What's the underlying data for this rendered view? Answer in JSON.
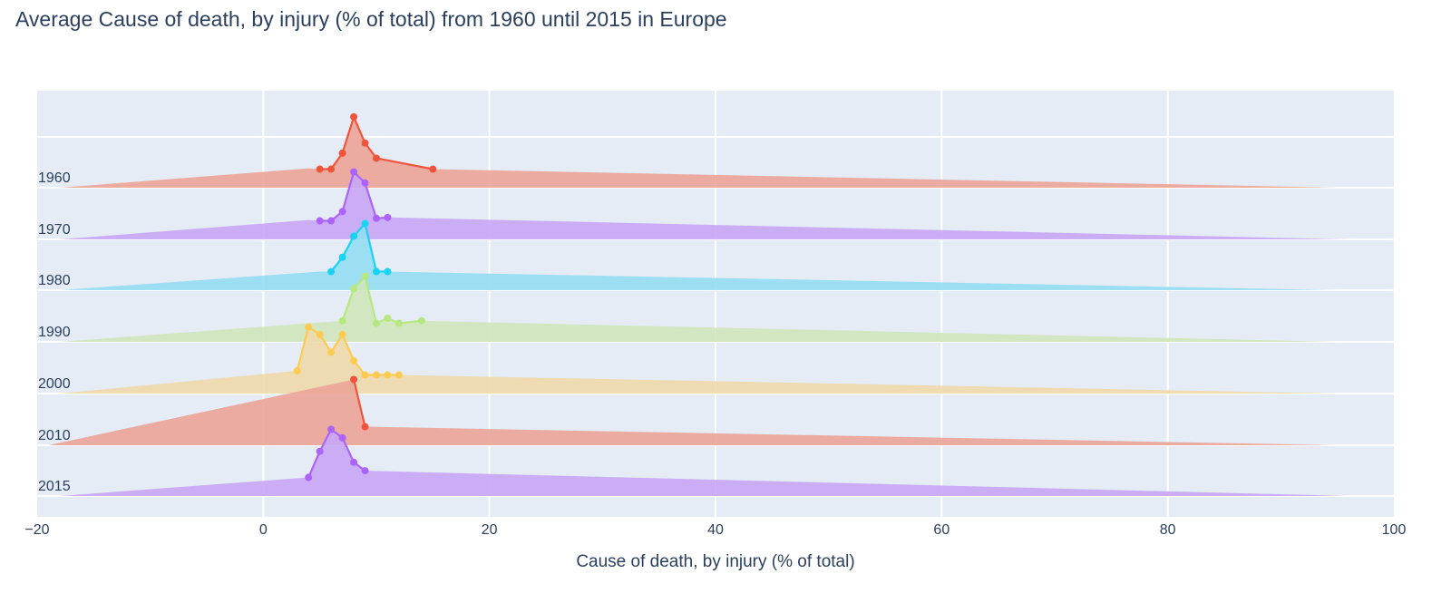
{
  "chart_data": {
    "type": "ridgeline",
    "title": "Average Cause of death, by injury (% of total) from 1960 until 2015 in Europe",
    "xlabel": "Cause of death, by injury (% of total)",
    "ylabel": "",
    "xlim": [
      -20,
      100
    ],
    "x_ticks": [
      -20,
      0,
      20,
      40,
      60,
      80,
      100
    ],
    "x_tick_labels": [
      "−20",
      "0",
      "20",
      "40",
      "60",
      "80",
      "100"
    ],
    "grid": true,
    "legend": "none",
    "colors": {
      "plot_bg": "#E5ECF6",
      "grid": "#ffffff",
      "axis_text": "#2a3f5f"
    },
    "series": [
      {
        "name": "1960",
        "color": "#EF553B",
        "fill": "#EBA497",
        "points": [
          [
            5,
            2.2
          ],
          [
            6,
            2.2
          ],
          [
            7,
            4.1
          ],
          [
            8,
            8.4
          ],
          [
            9,
            5.3
          ],
          [
            10,
            3.5
          ],
          [
            15,
            2.2
          ]
        ],
        "tail_left": [
          -18,
          0
        ],
        "tail_right": [
          95,
          0
        ],
        "base": [
          4,
          2.3
        ],
        "base_right": [
          15,
          2.2
        ]
      },
      {
        "name": "1970",
        "color": "#AB63FA",
        "fill": "#C8A6F6",
        "points": [
          [
            5,
            2.2
          ],
          [
            6,
            2.2
          ],
          [
            7,
            3.3
          ],
          [
            8,
            8.0
          ],
          [
            9,
            6.7
          ],
          [
            10,
            2.5
          ],
          [
            11,
            2.6
          ]
        ],
        "tail_left": [
          -18,
          0
        ],
        "tail_right": [
          96,
          0
        ],
        "base": [
          4,
          2.3
        ],
        "base_right": [
          11,
          2.6
        ]
      },
      {
        "name": "1980",
        "color": "#19D3F3",
        "fill": "#93DEF3",
        "points": [
          [
            6,
            2.2
          ],
          [
            7,
            3.9
          ],
          [
            8,
            6.4
          ],
          [
            9,
            7.9
          ],
          [
            10,
            2.2
          ],
          [
            11,
            2.2
          ]
        ],
        "tail_left": [
          -18,
          0
        ],
        "tail_right": [
          95,
          0
        ],
        "base": [
          5,
          2.2
        ],
        "base_right": [
          11,
          2.2
        ]
      },
      {
        "name": "1990",
        "color": "#B6E880",
        "fill": "#CFE6BB",
        "points": [
          [
            7,
            2.5
          ],
          [
            8,
            6.3
          ],
          [
            9,
            7.8
          ],
          [
            10,
            2.2
          ],
          [
            11,
            2.8
          ],
          [
            12,
            2.2
          ],
          [
            14,
            2.5
          ]
        ],
        "tail_left": [
          -18,
          0
        ],
        "tail_right": [
          95,
          0
        ],
        "base": [
          4,
          2.2
        ],
        "base_right": [
          14,
          2.5
        ]
      },
      {
        "name": "2000",
        "color": "#FECB52",
        "fill": "#EED9AB",
        "points": [
          [
            3,
            2.7
          ],
          [
            4,
            7.9
          ],
          [
            5,
            7.0
          ],
          [
            6,
            4.9
          ],
          [
            7,
            7.0
          ],
          [
            8,
            3.9
          ],
          [
            9,
            2.2
          ],
          [
            10,
            2.2
          ],
          [
            11,
            2.2
          ],
          [
            12,
            2.2
          ]
        ],
        "tail_left": [
          -18,
          0
        ],
        "tail_right": [
          95,
          0
        ],
        "base": [
          3,
          2.7
        ],
        "base_right": [
          12,
          2.2
        ]
      },
      {
        "name": "2010",
        "color": "#EF553B",
        "fill": "#EBA497",
        "points": [
          [
            8,
            7.8
          ],
          [
            9,
            2.2
          ]
        ],
        "tail_left": [
          -19,
          0
        ],
        "tail_right": [
          95,
          0
        ],
        "base": [
          8,
          7.8
        ],
        "base_right": [
          9,
          2.2
        ]
      },
      {
        "name": "2015",
        "color": "#AB63FA",
        "fill": "#C8A6F6",
        "points": [
          [
            4,
            2.2
          ],
          [
            5,
            5.3
          ],
          [
            6,
            7.9
          ],
          [
            7,
            6.9
          ],
          [
            8,
            4.0
          ],
          [
            9,
            3.0
          ]
        ],
        "tail_left": [
          -18,
          0
        ],
        "tail_right": [
          96,
          0
        ],
        "base": [
          4,
          2.2
        ],
        "base_right": [
          9,
          3.0
        ]
      }
    ]
  }
}
